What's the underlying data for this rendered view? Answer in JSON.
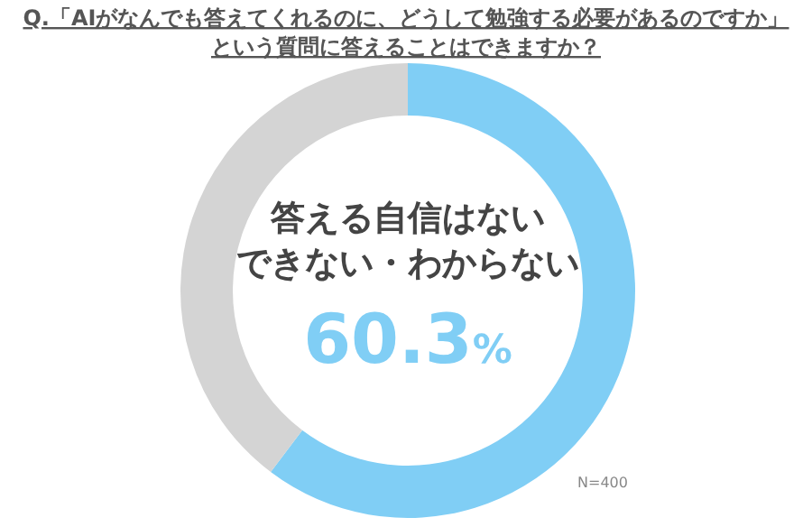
{
  "chart_data": {
    "type": "donut",
    "title": "Q.「AIがなんでも答えてくれるのに、どうして勉強する必要があるのですか」",
    "subtitle": "という質問に答えることはできますか？",
    "categories": [
      "答える自信はないできない・わからない",
      null
    ],
    "values": [
      60.3,
      39.7
    ],
    "colors": [
      "#80cef5",
      "#d4d4d4"
    ],
    "value_labels": [
      "60.3%",
      null
    ],
    "annotations": [
      "N=400"
    ]
  }
}
